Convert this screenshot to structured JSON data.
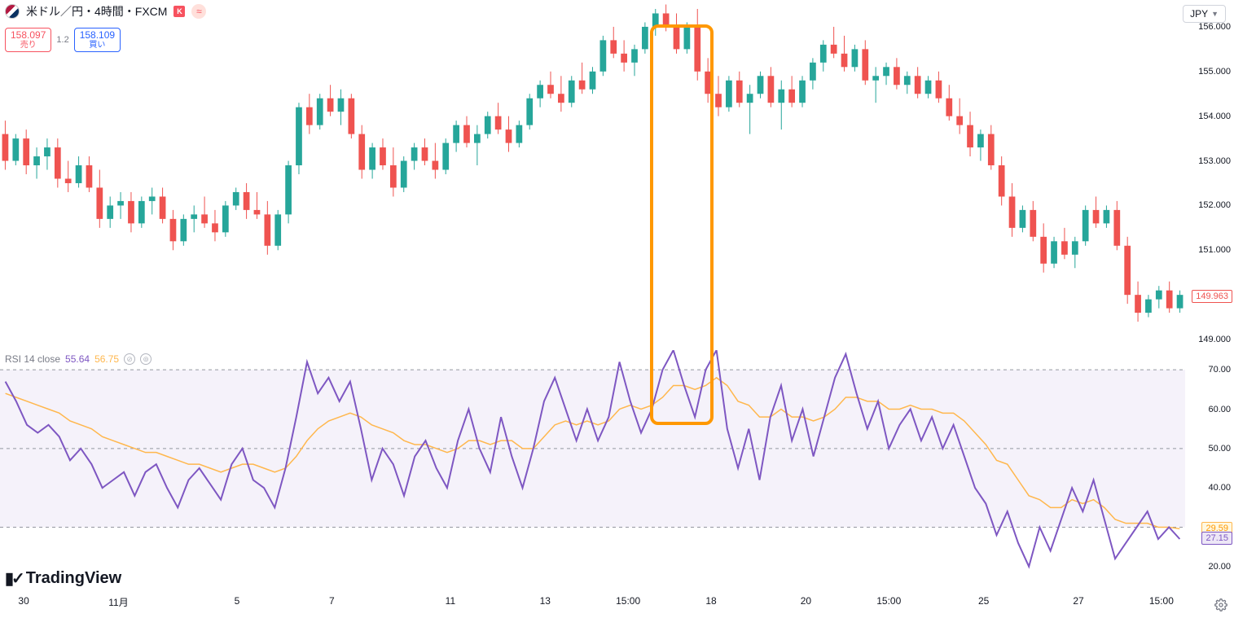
{
  "header": {
    "symbol_text": "米ドル／円・4時間・FXCM",
    "badge": "K",
    "sell_price": "158.097",
    "sell_label": "売り",
    "spread": "1.2",
    "buy_price": "158.109",
    "buy_label": "買い",
    "currency_selector": "JPY"
  },
  "price_chart": {
    "type": "candlestick",
    "ylim": [
      148.8,
      156.6
    ],
    "yticks": [
      149,
      150,
      151,
      152,
      153,
      154,
      155,
      156
    ],
    "ytick_labels": [
      "149.000",
      "150.000",
      "151.000",
      "152.000",
      "153.000",
      "154.000",
      "155.000",
      "156.000"
    ],
    "last_price": 149.963,
    "last_price_label": "149.963",
    "colors": {
      "up": "#26a69a",
      "down": "#ef5350",
      "up_fill": "#26a69a",
      "down_fill": "#ef5350",
      "wick": "#787b86",
      "bg": "#ffffff",
      "tag_border": "#ef5350",
      "tag_text": "#ef5350",
      "tag_bg": "#ffffff"
    },
    "candles": [
      {
        "o": 153.6,
        "h": 153.9,
        "l": 152.8,
        "c": 153.0
      },
      {
        "o": 153.0,
        "h": 153.6,
        "l": 152.9,
        "c": 153.5
      },
      {
        "o": 153.5,
        "h": 153.7,
        "l": 152.7,
        "c": 152.9
      },
      {
        "o": 152.9,
        "h": 153.3,
        "l": 152.6,
        "c": 153.1
      },
      {
        "o": 153.1,
        "h": 153.5,
        "l": 152.8,
        "c": 153.3
      },
      {
        "o": 153.3,
        "h": 153.5,
        "l": 152.4,
        "c": 152.6
      },
      {
        "o": 152.6,
        "h": 153.0,
        "l": 152.3,
        "c": 152.5
      },
      {
        "o": 152.5,
        "h": 153.1,
        "l": 152.4,
        "c": 152.9
      },
      {
        "o": 152.9,
        "h": 153.1,
        "l": 152.3,
        "c": 152.4
      },
      {
        "o": 152.4,
        "h": 152.8,
        "l": 151.5,
        "c": 151.7
      },
      {
        "o": 151.7,
        "h": 152.2,
        "l": 151.5,
        "c": 152.0
      },
      {
        "o": 152.0,
        "h": 152.3,
        "l": 151.7,
        "c": 152.1
      },
      {
        "o": 152.1,
        "h": 152.3,
        "l": 151.4,
        "c": 151.6
      },
      {
        "o": 151.6,
        "h": 152.2,
        "l": 151.5,
        "c": 152.1
      },
      {
        "o": 152.1,
        "h": 152.4,
        "l": 151.8,
        "c": 152.2
      },
      {
        "o": 152.2,
        "h": 152.4,
        "l": 151.6,
        "c": 151.7
      },
      {
        "o": 151.7,
        "h": 151.9,
        "l": 151.0,
        "c": 151.2
      },
      {
        "o": 151.2,
        "h": 151.8,
        "l": 151.1,
        "c": 151.7
      },
      {
        "o": 151.7,
        "h": 152.0,
        "l": 151.4,
        "c": 151.8
      },
      {
        "o": 151.8,
        "h": 152.2,
        "l": 151.5,
        "c": 151.6
      },
      {
        "o": 151.6,
        "h": 151.9,
        "l": 151.2,
        "c": 151.4
      },
      {
        "o": 151.4,
        "h": 152.1,
        "l": 151.3,
        "c": 152.0
      },
      {
        "o": 152.0,
        "h": 152.4,
        "l": 151.9,
        "c": 152.3
      },
      {
        "o": 152.3,
        "h": 152.5,
        "l": 151.7,
        "c": 151.9
      },
      {
        "o": 151.9,
        "h": 152.3,
        "l": 151.7,
        "c": 151.8
      },
      {
        "o": 151.8,
        "h": 152.1,
        "l": 150.9,
        "c": 151.1
      },
      {
        "o": 151.1,
        "h": 151.9,
        "l": 151.0,
        "c": 151.8
      },
      {
        "o": 151.8,
        "h": 153.0,
        "l": 151.6,
        "c": 152.9
      },
      {
        "o": 152.9,
        "h": 154.3,
        "l": 152.7,
        "c": 154.2
      },
      {
        "o": 154.2,
        "h": 154.5,
        "l": 153.6,
        "c": 153.8
      },
      {
        "o": 153.8,
        "h": 154.5,
        "l": 153.7,
        "c": 154.4
      },
      {
        "o": 154.4,
        "h": 154.7,
        "l": 154.0,
        "c": 154.1
      },
      {
        "o": 154.1,
        "h": 154.6,
        "l": 153.8,
        "c": 154.4
      },
      {
        "o": 154.4,
        "h": 154.5,
        "l": 153.5,
        "c": 153.6
      },
      {
        "o": 153.6,
        "h": 153.8,
        "l": 152.6,
        "c": 152.8
      },
      {
        "o": 152.8,
        "h": 153.4,
        "l": 152.6,
        "c": 153.3
      },
      {
        "o": 153.3,
        "h": 153.5,
        "l": 152.8,
        "c": 152.9
      },
      {
        "o": 152.9,
        "h": 153.3,
        "l": 152.2,
        "c": 152.4
      },
      {
        "o": 152.4,
        "h": 153.1,
        "l": 152.3,
        "c": 153.0
      },
      {
        "o": 153.0,
        "h": 153.4,
        "l": 152.8,
        "c": 153.3
      },
      {
        "o": 153.3,
        "h": 153.5,
        "l": 152.9,
        "c": 153.0
      },
      {
        "o": 153.0,
        "h": 153.4,
        "l": 152.6,
        "c": 152.8
      },
      {
        "o": 152.8,
        "h": 153.5,
        "l": 152.7,
        "c": 153.4
      },
      {
        "o": 153.4,
        "h": 153.9,
        "l": 153.2,
        "c": 153.8
      },
      {
        "o": 153.8,
        "h": 154.0,
        "l": 153.3,
        "c": 153.4
      },
      {
        "o": 153.4,
        "h": 153.8,
        "l": 152.9,
        "c": 153.6
      },
      {
        "o": 153.6,
        "h": 154.1,
        "l": 153.5,
        "c": 154.0
      },
      {
        "o": 154.0,
        "h": 154.3,
        "l": 153.6,
        "c": 153.7
      },
      {
        "o": 153.7,
        "h": 154.0,
        "l": 153.2,
        "c": 153.4
      },
      {
        "o": 153.4,
        "h": 153.9,
        "l": 153.3,
        "c": 153.8
      },
      {
        "o": 153.8,
        "h": 154.5,
        "l": 153.7,
        "c": 154.4
      },
      {
        "o": 154.4,
        "h": 154.8,
        "l": 154.2,
        "c": 154.7
      },
      {
        "o": 154.7,
        "h": 155.0,
        "l": 154.4,
        "c": 154.5
      },
      {
        "o": 154.5,
        "h": 154.9,
        "l": 154.1,
        "c": 154.3
      },
      {
        "o": 154.3,
        "h": 154.9,
        "l": 154.2,
        "c": 154.8
      },
      {
        "o": 154.8,
        "h": 155.2,
        "l": 154.5,
        "c": 154.6
      },
      {
        "o": 154.6,
        "h": 155.1,
        "l": 154.5,
        "c": 155.0
      },
      {
        "o": 155.0,
        "h": 155.8,
        "l": 154.9,
        "c": 155.7
      },
      {
        "o": 155.7,
        "h": 156.0,
        "l": 155.3,
        "c": 155.4
      },
      {
        "o": 155.4,
        "h": 155.7,
        "l": 155.0,
        "c": 155.2
      },
      {
        "o": 155.2,
        "h": 155.6,
        "l": 154.9,
        "c": 155.5
      },
      {
        "o": 155.5,
        "h": 156.1,
        "l": 155.4,
        "c": 156.0
      },
      {
        "o": 156.0,
        "h": 156.4,
        "l": 155.8,
        "c": 156.3
      },
      {
        "o": 156.3,
        "h": 156.5,
        "l": 155.9,
        "c": 156.0
      },
      {
        "o": 156.0,
        "h": 156.3,
        "l": 155.4,
        "c": 155.5
      },
      {
        "o": 155.5,
        "h": 156.1,
        "l": 155.4,
        "c": 156.0
      },
      {
        "o": 156.0,
        "h": 156.4,
        "l": 154.8,
        "c": 155.0
      },
      {
        "o": 155.0,
        "h": 155.3,
        "l": 154.3,
        "c": 154.5
      },
      {
        "o": 154.5,
        "h": 154.9,
        "l": 154.0,
        "c": 154.2
      },
      {
        "o": 154.2,
        "h": 154.9,
        "l": 154.1,
        "c": 154.8
      },
      {
        "o": 154.8,
        "h": 155.0,
        "l": 154.2,
        "c": 154.3
      },
      {
        "o": 154.3,
        "h": 154.7,
        "l": 153.6,
        "c": 154.5
      },
      {
        "o": 154.5,
        "h": 155.0,
        "l": 154.4,
        "c": 154.9
      },
      {
        "o": 154.9,
        "h": 155.1,
        "l": 154.2,
        "c": 154.3
      },
      {
        "o": 154.3,
        "h": 154.8,
        "l": 153.7,
        "c": 154.6
      },
      {
        "o": 154.6,
        "h": 154.9,
        "l": 154.2,
        "c": 154.3
      },
      {
        "o": 154.3,
        "h": 154.9,
        "l": 154.2,
        "c": 154.8
      },
      {
        "o": 154.8,
        "h": 155.3,
        "l": 154.6,
        "c": 155.2
      },
      {
        "o": 155.2,
        "h": 155.7,
        "l": 155.0,
        "c": 155.6
      },
      {
        "o": 155.6,
        "h": 156.0,
        "l": 155.3,
        "c": 155.4
      },
      {
        "o": 155.4,
        "h": 155.8,
        "l": 155.0,
        "c": 155.1
      },
      {
        "o": 155.1,
        "h": 155.6,
        "l": 155.0,
        "c": 155.5
      },
      {
        "o": 155.5,
        "h": 155.7,
        "l": 154.7,
        "c": 154.8
      },
      {
        "o": 154.8,
        "h": 155.1,
        "l": 154.3,
        "c": 154.9
      },
      {
        "o": 154.9,
        "h": 155.2,
        "l": 154.7,
        "c": 155.1
      },
      {
        "o": 155.1,
        "h": 155.3,
        "l": 154.6,
        "c": 154.7
      },
      {
        "o": 154.7,
        "h": 155.0,
        "l": 154.5,
        "c": 154.9
      },
      {
        "o": 154.9,
        "h": 155.1,
        "l": 154.4,
        "c": 154.5
      },
      {
        "o": 154.5,
        "h": 154.9,
        "l": 154.4,
        "c": 154.8
      },
      {
        "o": 154.8,
        "h": 155.0,
        "l": 154.3,
        "c": 154.4
      },
      {
        "o": 154.4,
        "h": 154.7,
        "l": 153.9,
        "c": 154.0
      },
      {
        "o": 154.0,
        "h": 154.4,
        "l": 153.6,
        "c": 153.8
      },
      {
        "o": 153.8,
        "h": 154.1,
        "l": 153.1,
        "c": 153.3
      },
      {
        "o": 153.3,
        "h": 153.7,
        "l": 153.0,
        "c": 153.6
      },
      {
        "o": 153.6,
        "h": 153.8,
        "l": 152.8,
        "c": 152.9
      },
      {
        "o": 152.9,
        "h": 153.1,
        "l": 152.0,
        "c": 152.2
      },
      {
        "o": 152.2,
        "h": 152.5,
        "l": 151.3,
        "c": 151.5
      },
      {
        "o": 151.5,
        "h": 152.0,
        "l": 151.4,
        "c": 151.9
      },
      {
        "o": 151.9,
        "h": 152.1,
        "l": 151.2,
        "c": 151.3
      },
      {
        "o": 151.3,
        "h": 151.6,
        "l": 150.5,
        "c": 150.7
      },
      {
        "o": 150.7,
        "h": 151.3,
        "l": 150.6,
        "c": 151.2
      },
      {
        "o": 151.2,
        "h": 151.5,
        "l": 150.8,
        "c": 150.9
      },
      {
        "o": 150.9,
        "h": 151.3,
        "l": 150.6,
        "c": 151.2
      },
      {
        "o": 151.2,
        "h": 152.0,
        "l": 151.1,
        "c": 151.9
      },
      {
        "o": 151.9,
        "h": 152.2,
        "l": 151.5,
        "c": 151.6
      },
      {
        "o": 151.6,
        "h": 152.0,
        "l": 151.5,
        "c": 151.9
      },
      {
        "o": 151.9,
        "h": 152.1,
        "l": 151.0,
        "c": 151.1
      },
      {
        "o": 151.1,
        "h": 151.3,
        "l": 149.8,
        "c": 150.0
      },
      {
        "o": 150.0,
        "h": 150.3,
        "l": 149.4,
        "c": 149.6
      },
      {
        "o": 149.6,
        "h": 150.0,
        "l": 149.5,
        "c": 149.9
      },
      {
        "o": 149.9,
        "h": 150.2,
        "l": 149.7,
        "c": 150.1
      },
      {
        "o": 150.1,
        "h": 150.3,
        "l": 149.6,
        "c": 149.7
      },
      {
        "o": 149.7,
        "h": 150.1,
        "l": 149.6,
        "c": 150.0
      }
    ]
  },
  "rsi": {
    "label": "RSI 14 close",
    "value_purple": "55.64",
    "value_yellow": "56.75",
    "ylim": [
      15,
      75
    ],
    "yticks": [
      20,
      30,
      40,
      50,
      60,
      70
    ],
    "ytick_labels": [
      "20.00",
      "30.00",
      "40.00",
      "50.00",
      "60.00",
      "70.00"
    ],
    "band": [
      30,
      70
    ],
    "colors": {
      "purple": "#7e57c2",
      "yellow": "#ffb74d",
      "band_fill": "#ede7f6",
      "grid": "#9598a1",
      "tag_purple_bg": "#ede7f6",
      "tag_purple_border": "#7e57c2",
      "tag_purple_text": "#7e57c2",
      "tag_yellow_bg": "#fff8e1",
      "tag_yellow_border": "#ffb74d",
      "tag_yellow_text": "#ff9800"
    },
    "last_purple": 27.15,
    "last_purple_label": "27.15",
    "last_yellow": 29.59,
    "last_yellow_label": "29.59",
    "purple_values": [
      67,
      62,
      56,
      54,
      56,
      53,
      47,
      50,
      46,
      40,
      42,
      44,
      38,
      44,
      46,
      40,
      35,
      42,
      45,
      41,
      37,
      46,
      50,
      42,
      40,
      35,
      45,
      58,
      72,
      64,
      68,
      62,
      67,
      55,
      42,
      50,
      46,
      38,
      48,
      52,
      45,
      40,
      52,
      60,
      50,
      44,
      58,
      48,
      40,
      50,
      62,
      68,
      60,
      52,
      60,
      52,
      58,
      72,
      62,
      54,
      60,
      70,
      75,
      66,
      58,
      70,
      75,
      55,
      45,
      55,
      42,
      58,
      66,
      52,
      60,
      48,
      58,
      68,
      74,
      64,
      55,
      62,
      50,
      56,
      60,
      52,
      58,
      50,
      56,
      48,
      40,
      36,
      28,
      34,
      26,
      20,
      30,
      24,
      32,
      40,
      34,
      42,
      32,
      22,
      26,
      30,
      34,
      27,
      30,
      27
    ],
    "yellow_values": [
      64,
      63,
      62,
      61,
      60,
      59,
      57,
      56,
      55,
      53,
      52,
      51,
      50,
      49,
      49,
      48,
      47,
      46,
      46,
      45,
      44,
      45,
      46,
      46,
      45,
      44,
      45,
      48,
      52,
      55,
      57,
      58,
      59,
      58,
      56,
      55,
      54,
      52,
      51,
      51,
      50,
      49,
      50,
      52,
      52,
      51,
      52,
      52,
      50,
      50,
      53,
      56,
      57,
      56,
      57,
      56,
      57,
      60,
      61,
      60,
      61,
      63,
      66,
      66,
      65,
      66,
      68,
      66,
      62,
      61,
      58,
      58,
      60,
      58,
      58,
      57,
      58,
      60,
      63,
      63,
      62,
      62,
      60,
      60,
      61,
      60,
      60,
      59,
      59,
      57,
      54,
      51,
      47,
      46,
      42,
      38,
      37,
      35,
      35,
      37,
      36,
      37,
      35,
      32,
      31,
      31,
      31,
      30,
      30,
      29.6
    ]
  },
  "time_axis": {
    "labels": [
      "30",
      "11月",
      "5",
      "7",
      "11",
      "13",
      "15:00",
      "18",
      "20",
      "15:00",
      "25",
      "27",
      "15:00"
    ],
    "positions_pct": [
      2,
      10,
      20,
      28,
      38,
      46,
      53,
      60,
      68,
      75,
      83,
      91,
      98
    ]
  },
  "highlight_box": {
    "x_start_idx": 62,
    "x_end_idx": 67,
    "color": "#ff9800"
  },
  "branding": {
    "logo_text": "TradingView"
  }
}
